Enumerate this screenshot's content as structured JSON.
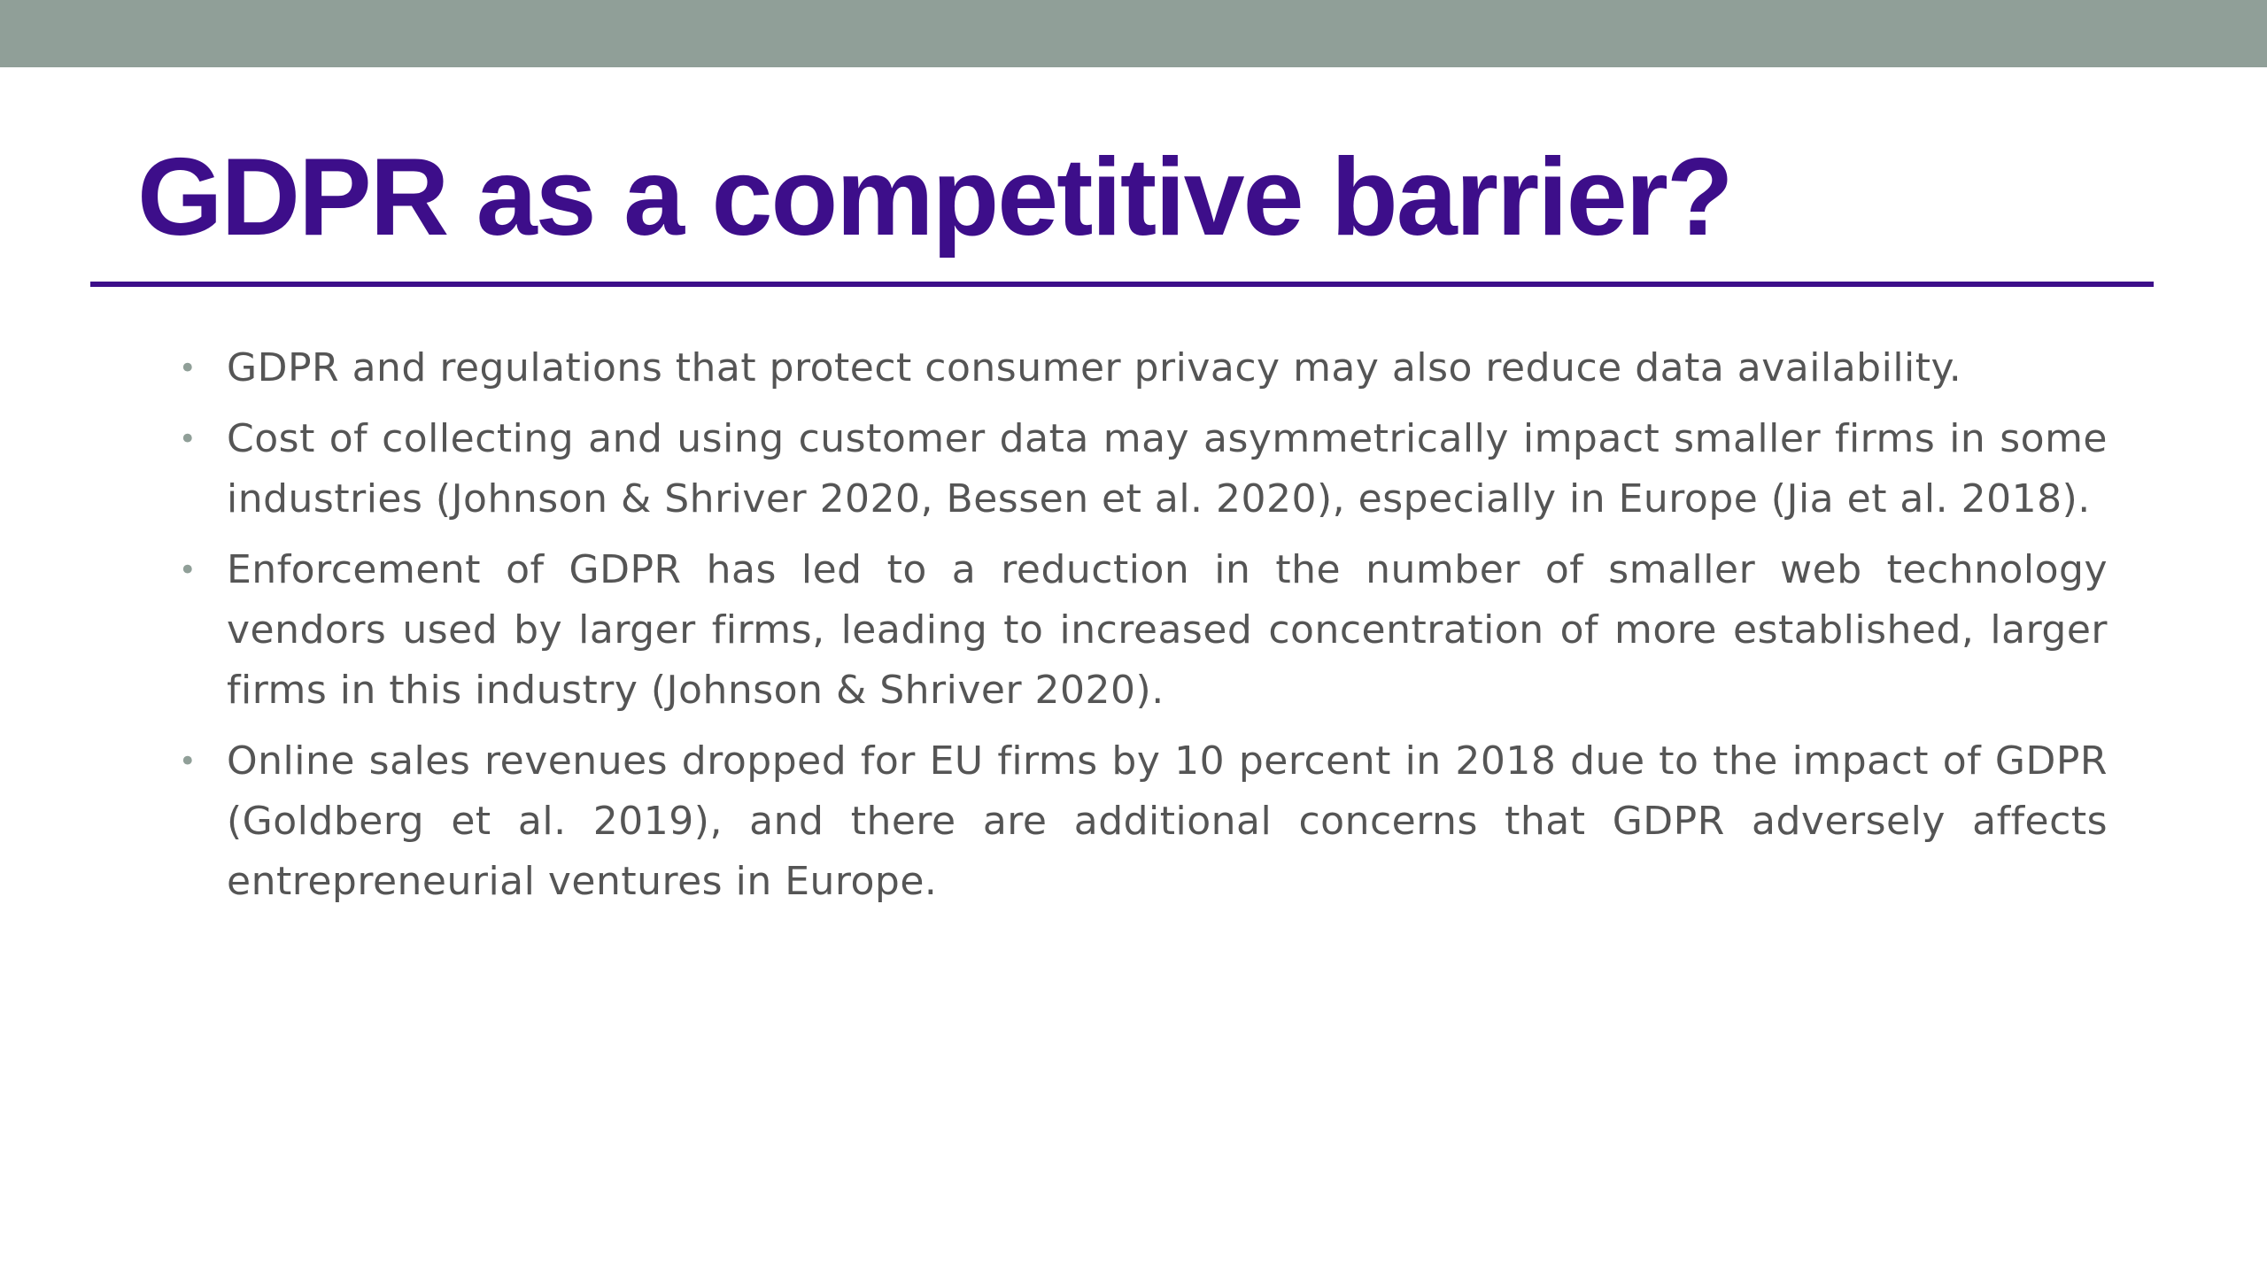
{
  "slide": {
    "title": "GDPR as a competitive barrier?",
    "bullet_glyph": "•",
    "bullets": [
      {
        "text": "GDPR and regulations that protect consumer privacy may also reduce data availability."
      },
      {
        "text": "Cost of collecting and using customer data may asymmetrically impact smaller firms in some industries (Johnson & Shriver 2020, Bessen et al. 2020), especially in Europe (Jia et al. 2018)."
      },
      {
        "text": "Enforcement of GDPR has led to a reduction in the number of smaller web technology vendors used by larger firms, leading to increased concentration of more established, larger firms in this industry (Johnson & Shriver 2020)."
      },
      {
        "text": "Online sales revenues dropped for EU firms by 10 percent in 2018 due to the impact of GDPR (Goldberg et al. 2019), and there are additional concerns that GDPR adversely affects entrepreneurial ventures in Europe."
      }
    ]
  },
  "colors": {
    "top_band": "#909f98",
    "title": "#3d0e8a",
    "rule": "#3d0e8a",
    "body_text": "#555555",
    "bullet": "#909f98",
    "background": "#ffffff"
  }
}
